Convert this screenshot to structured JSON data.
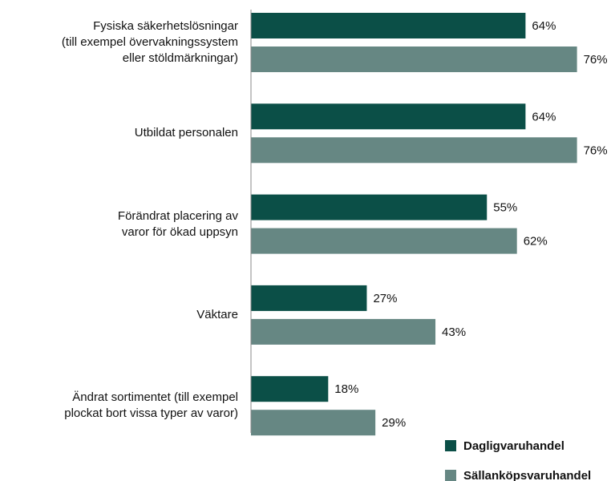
{
  "chart_data": {
    "type": "bar",
    "orientation": "horizontal",
    "categories": [
      "Fysiska säkerhetslösningar\n(till exempel övervakningssystem\neller stöldmärkningar)",
      "Utbildat personalen",
      "Förändrat placering av\nvaror för ökad uppsyn",
      "Väktare",
      "Ändrat sortimentet (till exempel\nplockat bort vissa typer av varor)"
    ],
    "series": [
      {
        "name": "Dagligvaruhandel",
        "color": "#0b4f47",
        "values": [
          64,
          64,
          55,
          27,
          18
        ],
        "value_labels": [
          "64%",
          "64%",
          "55%",
          "27%",
          "18%"
        ]
      },
      {
        "name": "Sällanköpsvaruhandel",
        "color": "#668783",
        "values": [
          76,
          76,
          62,
          43,
          29
        ],
        "value_labels": [
          "76%",
          "76%",
          "62%",
          "43%",
          "29%"
        ]
      }
    ],
    "xlim": [
      0,
      100
    ]
  }
}
